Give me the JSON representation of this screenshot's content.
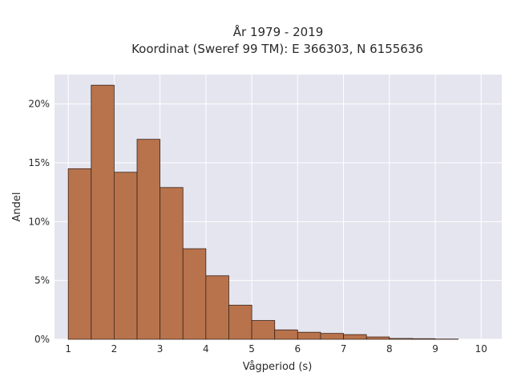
{
  "chart_data": {
    "type": "bar",
    "title_line1": "År 1979 - 2019",
    "title_line2": "Koordinat (Sweref 99 TM): E 366303, N 6155636",
    "xlabel": "Vågperiod (s)",
    "ylabel": "Andel",
    "xlim": [
      0.7,
      10.45
    ],
    "ylim": [
      0,
      22.5
    ],
    "bin_width": 0.5,
    "bins": [
      {
        "start": 1.0,
        "value": 14.5
      },
      {
        "start": 1.5,
        "value": 21.6
      },
      {
        "start": 2.0,
        "value": 14.2
      },
      {
        "start": 2.5,
        "value": 17.0
      },
      {
        "start": 3.0,
        "value": 12.9
      },
      {
        "start": 3.5,
        "value": 7.7
      },
      {
        "start": 4.0,
        "value": 5.4
      },
      {
        "start": 4.5,
        "value": 2.9
      },
      {
        "start": 5.0,
        "value": 1.6
      },
      {
        "start": 5.5,
        "value": 0.8
      },
      {
        "start": 6.0,
        "value": 0.6
      },
      {
        "start": 6.5,
        "value": 0.5
      },
      {
        "start": 7.0,
        "value": 0.4
      },
      {
        "start": 7.5,
        "value": 0.2
      },
      {
        "start": 8.0,
        "value": 0.07
      },
      {
        "start": 8.5,
        "value": 0.05
      },
      {
        "start": 9.0,
        "value": 0.02
      }
    ],
    "x_ticks": [
      1,
      2,
      3,
      4,
      5,
      6,
      7,
      8,
      9,
      10
    ],
    "x_tick_labels": [
      "1",
      "2",
      "3",
      "4",
      "5",
      "6",
      "7",
      "8",
      "9",
      "10"
    ],
    "y_ticks": [
      0,
      5,
      10,
      15,
      20
    ],
    "y_tick_labels": [
      "0%",
      "5%",
      "10%",
      "15%",
      "20%"
    ],
    "grid": true,
    "colors": {
      "bar_fill": "#b8734c",
      "bar_stroke": "#3a2418",
      "plot_bg": "#e5e5ef",
      "grid": "#ffffff"
    }
  }
}
